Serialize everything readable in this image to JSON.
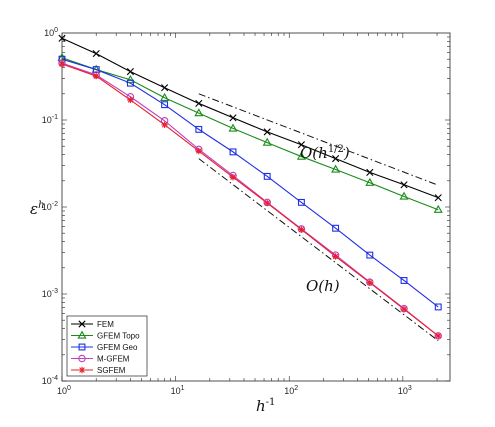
{
  "chart_data": {
    "type": "line",
    "xscale": "log",
    "yscale": "log",
    "xlim": [
      1,
      2600
    ],
    "ylim": [
      0.0001,
      1
    ],
    "xlabel": {
      "base": "h",
      "sup": "-1"
    },
    "ylabel": {
      "base": "ε",
      "sup": "h"
    },
    "x_ticks": [
      {
        "value": 1,
        "base": "10",
        "exp": "0"
      },
      {
        "value": 10,
        "base": "10",
        "exp": "1"
      },
      {
        "value": 100,
        "base": "10",
        "exp": "2"
      },
      {
        "value": 1000,
        "base": "10",
        "exp": "3"
      }
    ],
    "y_ticks": [
      {
        "value": 0.0001,
        "base": "10",
        "exp": "-4"
      },
      {
        "value": 0.001,
        "base": "10",
        "exp": "-3"
      },
      {
        "value": 0.01,
        "base": "10",
        "exp": "-2"
      },
      {
        "value": 0.1,
        "base": "10",
        "exp": "-1"
      },
      {
        "value": 1,
        "base": "10",
        "exp": "0"
      }
    ],
    "grid": false,
    "legend_position": "bottom-left",
    "x": [
      1,
      2,
      4,
      8,
      16,
      32,
      64,
      128,
      256,
      512,
      1024,
      2048
    ],
    "series": [
      {
        "name": "FEM",
        "color": "#000000",
        "marker": "x",
        "values": [
          0.87,
          0.58,
          0.36,
          0.235,
          0.155,
          0.106,
          0.073,
          0.052,
          0.036,
          0.025,
          0.018,
          0.0128
        ]
      },
      {
        "name": "GFEM Topo",
        "color": "#1a8c1a",
        "marker": "triangle",
        "values": [
          0.52,
          0.38,
          0.29,
          0.18,
          0.12,
          0.08,
          0.055,
          0.038,
          0.027,
          0.019,
          0.0132,
          0.0093
        ]
      },
      {
        "name": "GFEM Geo",
        "color": "#1f2fe6",
        "marker": "square",
        "values": [
          0.5,
          0.38,
          0.265,
          0.15,
          0.078,
          0.043,
          0.0225,
          0.0113,
          0.0057,
          0.0028,
          0.00143,
          0.00071
        ]
      },
      {
        "name": "M-GFEM",
        "color": "#bf40bf",
        "marker": "circle",
        "values": [
          0.45,
          0.33,
          0.185,
          0.098,
          0.046,
          0.023,
          0.0113,
          0.0056,
          0.0028,
          0.00137,
          0.00068,
          0.00033
        ]
      },
      {
        "name": "SGFEM",
        "color": "#e8202a",
        "marker": "asterisk",
        "values": [
          0.44,
          0.32,
          0.17,
          0.088,
          0.044,
          0.022,
          0.0111,
          0.0055,
          0.0027,
          0.00135,
          0.00067,
          0.00033
        ]
      }
    ],
    "reference_lines": [
      {
        "label": "O(h^{1/2})",
        "label_base": "O(h",
        "label_sup": "1/2",
        "label_close": ")",
        "points": [
          [
            16,
            0.2
          ],
          [
            2048,
            0.0178
          ]
        ]
      },
      {
        "label": "O(h)",
        "label_base": "O(h)",
        "label_sup": "",
        "label_close": "",
        "points": [
          [
            16,
            0.036
          ],
          [
            2048,
            0.00029
          ]
        ]
      }
    ]
  }
}
